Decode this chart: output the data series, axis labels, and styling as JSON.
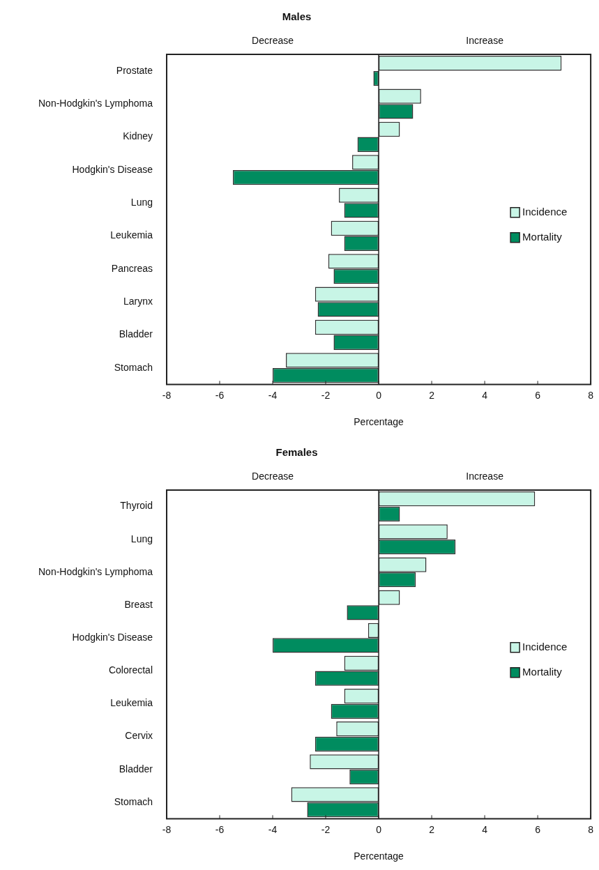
{
  "chart_data": [
    {
      "type": "bar",
      "orientation": "horizontal",
      "title": "Males",
      "xlabel": "Percentage",
      "annotations": [
        "Decrease",
        "Increase"
      ],
      "categories": [
        "Prostate",
        "Non-Hodgkin's Lymphoma",
        "Kidney",
        "Hodgkin's Disease",
        "Lung",
        "Leukemia",
        "Pancreas",
        "Larynx",
        "Bladder",
        "Stomach"
      ],
      "series": [
        {
          "name": "Incidence",
          "color": "#c8f5e6",
          "values": [
            6.9,
            1.6,
            0.8,
            -1.0,
            -1.5,
            -1.8,
            -1.9,
            -2.4,
            -2.4,
            -3.5
          ]
        },
        {
          "name": "Mortality",
          "color": "#008c5f",
          "values": [
            -0.2,
            1.3,
            -0.8,
            -5.5,
            -1.3,
            -1.3,
            -1.7,
            -2.3,
            -1.7,
            -4.0
          ]
        }
      ],
      "xlim": [
        -8,
        8
      ],
      "xticks": [
        -8,
        -6,
        -4,
        -2,
        0,
        2,
        4,
        6,
        8
      ],
      "legend": "right"
    },
    {
      "type": "bar",
      "orientation": "horizontal",
      "title": "Females",
      "xlabel": "Percentage",
      "annotations": [
        "Decrease",
        "Increase"
      ],
      "categories": [
        "Thyroid",
        "Lung",
        "Non-Hodgkin's Lymphoma",
        "Breast",
        "Hodgkin's Disease",
        "Colorectal",
        "Leukemia",
        "Cervix",
        "Bladder",
        "Stomach"
      ],
      "series": [
        {
          "name": "Incidence",
          "color": "#c8f5e6",
          "values": [
            5.9,
            2.6,
            1.8,
            0.8,
            -0.4,
            -1.3,
            -1.3,
            -1.6,
            -2.6,
            -3.3
          ]
        },
        {
          "name": "Mortality",
          "color": "#008c5f",
          "values": [
            0.8,
            2.9,
            1.4,
            -1.2,
            -4.0,
            -2.4,
            -1.8,
            -2.4,
            -1.1,
            -2.7
          ]
        }
      ],
      "xlim": [
        -8,
        8
      ],
      "xticks": [
        -8,
        -6,
        -4,
        -2,
        0,
        2,
        4,
        6,
        8
      ],
      "legend": "right"
    }
  ]
}
